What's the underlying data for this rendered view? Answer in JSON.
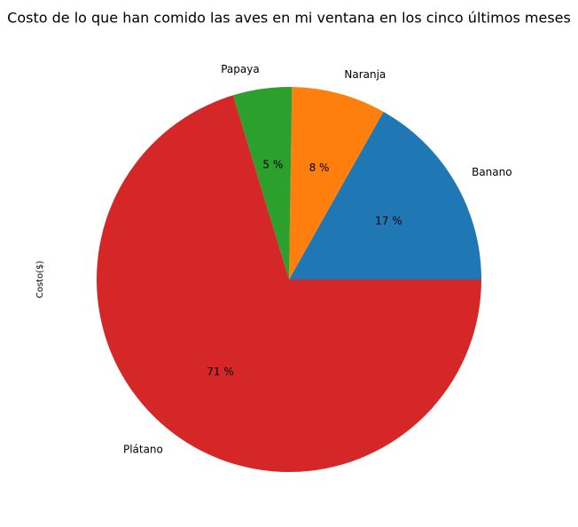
{
  "chart_data": {
    "type": "pie",
    "title": "Costo de lo que han comido las aves en mi ventana en los cinco últimos meses",
    "ylabel": "Costo($)",
    "categories": [
      "Banano",
      "Naranja",
      "Papaya",
      "Plátano"
    ],
    "values": [
      17,
      8,
      5,
      71
    ],
    "labels": [
      "17 %",
      "8 %",
      "5 %",
      "71 %"
    ],
    "colors": [
      "#1f77b4",
      "#ff7f0e",
      "#2ca02c",
      "#d62728"
    ],
    "start_angle_deg": 0,
    "direction": "counterclockwise"
  }
}
